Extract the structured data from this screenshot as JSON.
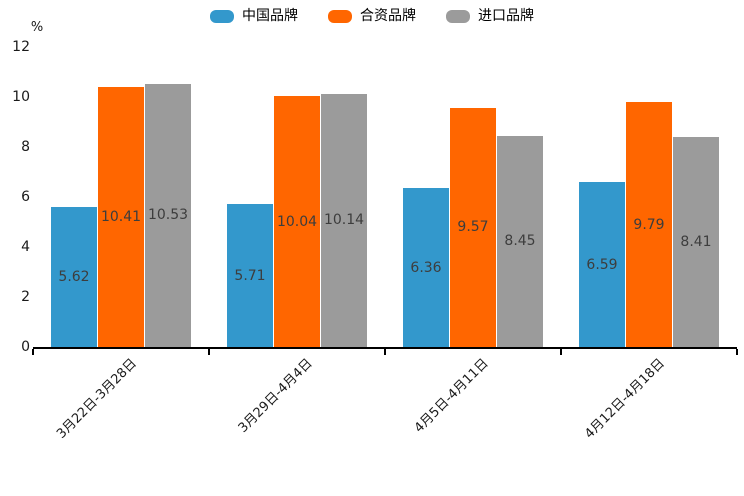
{
  "chart_data": {
    "type": "bar",
    "title": "",
    "xlabel": "",
    "ylabel": "%",
    "categories": [
      "3月22日-3月28日",
      "3月29日-4月4日",
      "4月5日-4月11日",
      "4月12日-4月18日"
    ],
    "series": [
      {
        "name": "中国品牌",
        "color": "#3398cc",
        "values": [
          5.62,
          5.71,
          6.36,
          6.59
        ]
      },
      {
        "name": "合资品牌",
        "color": "#ff6600",
        "values": [
          10.41,
          10.04,
          9.57,
          9.79
        ]
      },
      {
        "name": "进口品牌",
        "color": "#9b9b9b",
        "values": [
          10.53,
          10.14,
          8.45,
          8.41
        ]
      }
    ],
    "ylim": [
      0,
      12
    ],
    "yticks": [
      0,
      2,
      4,
      6,
      8,
      10,
      12
    ],
    "legend_position": "top-center",
    "grid": false,
    "value_labels_shown": true,
    "value_label_position": "inside-center",
    "axis_color": "#000000",
    "tick_text_color": "#1a1a1a",
    "value_label_color": "#3d3d3d"
  }
}
